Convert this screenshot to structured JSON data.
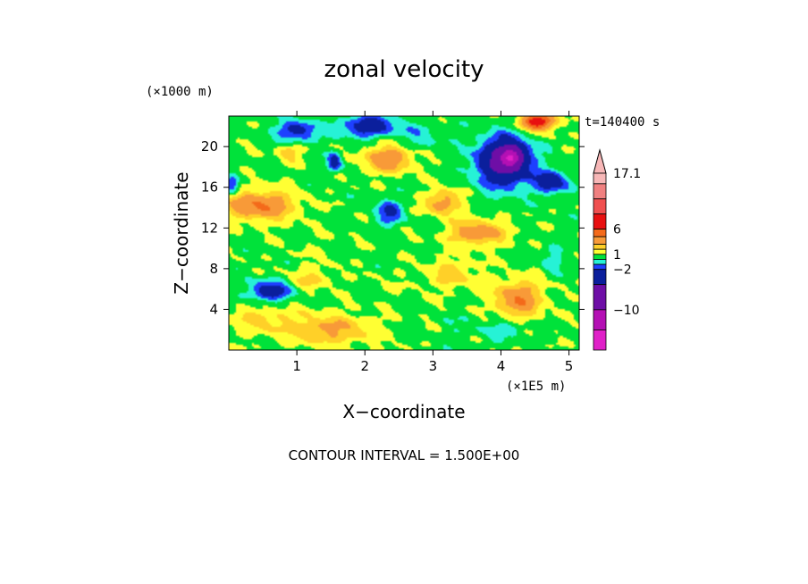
{
  "chart_data": {
    "type": "heatmap",
    "title": "zonal velocity",
    "time_label": "t=140400 s",
    "xlabel": "X−coordinate",
    "ylabel": "Z−coordinate",
    "x_unit": "(×1E5 m)",
    "y_unit": "(×1000 m)",
    "footer": "CONTOUR INTERVAL = 1.500E+00",
    "xlim": [
      0,
      5.15
    ],
    "ylim": [
      0,
      23
    ],
    "x_ticks": [
      1,
      2,
      3,
      4,
      5
    ],
    "y_ticks": [
      4,
      8,
      12,
      16,
      20
    ],
    "colorbar": {
      "labels": [
        {
          "text": "17.1",
          "value": 17.1
        },
        {
          "text": "6",
          "value": 6
        },
        {
          "text": "1",
          "value": 1
        },
        {
          "text": "−2",
          "value": -2
        },
        {
          "text": "−10",
          "value": -10
        }
      ],
      "bins": [
        {
          "lo": 15,
          "hi": 17.1,
          "color": "#f7b7b7"
        },
        {
          "lo": 12,
          "hi": 15,
          "color": "#f08080"
        },
        {
          "lo": 9,
          "hi": 12,
          "color": "#f05050"
        },
        {
          "lo": 6,
          "hi": 9,
          "color": "#e81010"
        },
        {
          "lo": 4.5,
          "hi": 6,
          "color": "#f46a1a"
        },
        {
          "lo": 3,
          "hi": 4.5,
          "color": "#f89a38"
        },
        {
          "lo": 2,
          "hi": 3,
          "color": "#ffd028"
        },
        {
          "lo": 1,
          "hi": 2,
          "color": "#ffff33"
        },
        {
          "lo": 0,
          "hi": 1,
          "color": "#00e23a"
        },
        {
          "lo": -1,
          "hi": 0,
          "color": "#26f2d6"
        },
        {
          "lo": -2,
          "hi": -1,
          "color": "#1e40ff"
        },
        {
          "lo": -5,
          "hi": -2,
          "color": "#0b1f9c"
        },
        {
          "lo": -10,
          "hi": -5,
          "color": "#6e0ea6"
        },
        {
          "lo": -14,
          "hi": -10,
          "color": "#b410b4"
        },
        {
          "lo": -18,
          "hi": -14,
          "color": "#e020c8"
        }
      ]
    },
    "features": [
      {
        "x": 1.0,
        "z": 21.5,
        "sx": 0.3,
        "sz": 1.1,
        "v": -3.5
      },
      {
        "x": 2.05,
        "z": 22.0,
        "sx": 0.4,
        "sz": 1.0,
        "v": -4.0
      },
      {
        "x": 2.8,
        "z": 21.0,
        "sx": 0.35,
        "sz": 1.5,
        "v": -1.2
      },
      {
        "x": 4.05,
        "z": 18.5,
        "sx": 0.38,
        "sz": 2.3,
        "v": -7.5
      },
      {
        "x": 4.15,
        "z": 19.0,
        "sx": 0.15,
        "sz": 0.9,
        "v": -9.0
      },
      {
        "x": 4.55,
        "z": 22.5,
        "sx": 0.25,
        "sz": 0.9,
        "v": 6.5
      },
      {
        "x": 4.75,
        "z": 16.5,
        "sx": 0.25,
        "sz": 1.1,
        "v": -3.8
      },
      {
        "x": 1.55,
        "z": 18.5,
        "sx": 0.1,
        "sz": 0.9,
        "v": -4.0
      },
      {
        "x": 0.45,
        "z": 14.2,
        "sx": 0.5,
        "sz": 1.4,
        "v": 4.0
      },
      {
        "x": 2.35,
        "z": 18.8,
        "sx": 0.35,
        "sz": 1.3,
        "v": 3.6
      },
      {
        "x": 2.35,
        "z": 13.5,
        "sx": 0.2,
        "sz": 1.2,
        "v": -3.0
      },
      {
        "x": 0.6,
        "z": 5.8,
        "sx": 0.3,
        "sz": 1.0,
        "v": -4.0
      },
      {
        "x": 0.05,
        "z": 16.3,
        "sx": 0.1,
        "sz": 1.0,
        "v": -2.8
      },
      {
        "x": 3.65,
        "z": 11.5,
        "sx": 0.4,
        "sz": 1.2,
        "v": 3.5
      },
      {
        "x": 4.25,
        "z": 5.0,
        "sx": 0.35,
        "sz": 1.8,
        "v": 3.6
      },
      {
        "x": 3.15,
        "z": 14.5,
        "sx": 0.25,
        "sz": 1.2,
        "v": 3.2
      },
      {
        "x": 1.3,
        "z": 10.0,
        "sx": 0.45,
        "sz": 1.6,
        "v": 0.3
      },
      {
        "x": 2.6,
        "z": 6.5,
        "sx": 0.6,
        "sz": 2.0,
        "v": 0.2
      },
      {
        "x": 0.5,
        "z": 3.0,
        "sx": 0.5,
        "sz": 1.5,
        "v": 1.5
      },
      {
        "x": 1.5,
        "z": 2.0,
        "sx": 0.6,
        "sz": 1.5,
        "v": 2.5
      },
      {
        "x": 4.1,
        "z": 2.0,
        "sx": 0.25,
        "sz": 1.0,
        "v": -1.5
      },
      {
        "x": 4.75,
        "z": 9.0,
        "sx": 0.15,
        "sz": 1.4,
        "v": -1.4
      },
      {
        "x": 3.5,
        "z": 2.5,
        "sx": 0.3,
        "sz": 1.2,
        "v": -0.6
      },
      {
        "x": 1.2,
        "z": 7.0,
        "sx": 0.3,
        "sz": 1.0,
        "v": 1.6
      },
      {
        "x": 3.3,
        "z": 7.5,
        "sx": 0.35,
        "sz": 1.5,
        "v": 1.6
      },
      {
        "x": 0.9,
        "z": 19.5,
        "sx": 0.2,
        "sz": 1.0,
        "v": 1.8
      }
    ]
  }
}
